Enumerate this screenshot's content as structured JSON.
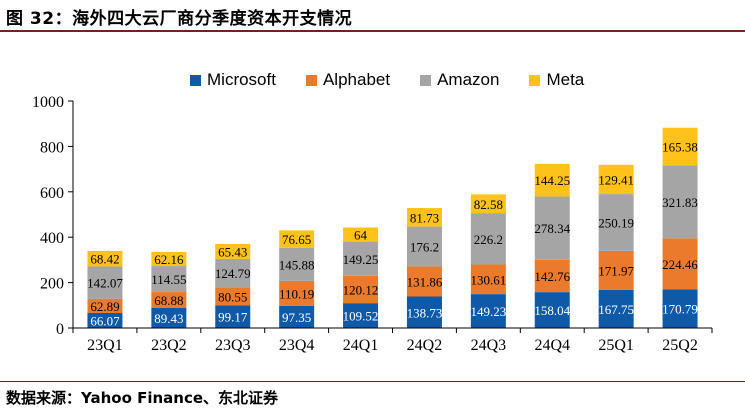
{
  "header": {
    "title": "图 32：海外四大云厂商分季度资本开支情况"
  },
  "footer": {
    "source": "数据来源：Yahoo Finance、东北证券"
  },
  "colors": {
    "Microsoft": "#0f5aa8",
    "Alphabet": "#ec7a2c",
    "Amazon": "#a5a5a5",
    "Meta": "#ffc21a",
    "rule": "#7a1e1e"
  },
  "chart_data": {
    "type": "bar",
    "stacked": true,
    "title": "",
    "xlabel": "",
    "ylabel": "",
    "ylim": [
      0,
      1000
    ],
    "yticks": [
      0,
      200,
      400,
      600,
      800,
      1000
    ],
    "grid": false,
    "legend": "top",
    "categories": [
      "23Q1",
      "23Q2",
      "23Q3",
      "23Q4",
      "24Q1",
      "24Q2",
      "24Q3",
      "24Q4",
      "25Q1",
      "25Q2"
    ],
    "series": [
      {
        "name": "Microsoft",
        "values": [
          66.07,
          89.43,
          99.17,
          97.35,
          109.52,
          138.73,
          149.23,
          158.04,
          167.75,
          170.79
        ]
      },
      {
        "name": "Alphabet",
        "values": [
          62.89,
          68.88,
          80.55,
          110.19,
          120.12,
          131.86,
          130.61,
          142.76,
          171.97,
          224.46
        ]
      },
      {
        "name": "Amazon",
        "values": [
          142.07,
          114.55,
          124.79,
          145.88,
          149.25,
          176.2,
          226.2,
          278.34,
          250.19,
          321.83
        ]
      },
      {
        "name": "Meta",
        "values": [
          68.42,
          62.16,
          65.43,
          76.65,
          64,
          81.73,
          82.58,
          144.25,
          129.41,
          165.38
        ]
      }
    ],
    "labels": [
      [
        "66.07",
        "89.43",
        "99.17",
        "97.35",
        "109.52",
        "138.73",
        "149.23",
        "158.04",
        "167.75",
        "170.79"
      ],
      [
        "62.89",
        "68.88",
        "80.55",
        "110.19",
        "120.12",
        "131.86",
        "130.61",
        "142.76",
        "171.97",
        "224.46"
      ],
      [
        "142.07",
        "114.55",
        "124.79",
        "145.88",
        "149.25",
        "176.2",
        "226.2",
        "278.34",
        "250.19",
        "321.83"
      ],
      [
        "68.42",
        "62.16",
        "65.43",
        "76.65",
        "64",
        "81.73",
        "82.58",
        "144.25",
        "129.41",
        "165.38"
      ]
    ]
  }
}
